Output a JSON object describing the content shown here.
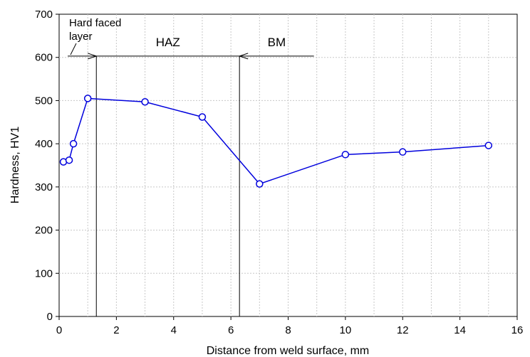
{
  "chart_data": {
    "type": "line",
    "title": "",
    "xlabel": "Distance from weld surface, mm",
    "ylabel": "Hardness, HV1",
    "xlim": [
      0,
      16
    ],
    "ylim": [
      0,
      700
    ],
    "xticks": [
      0,
      2,
      4,
      6,
      8,
      10,
      12,
      14,
      16
    ],
    "yticks": [
      0,
      100,
      200,
      300,
      400,
      500,
      600,
      700
    ],
    "grid": true,
    "legend": "none",
    "series": [
      {
        "color": "#0000dd",
        "x": [
          0.15,
          0.35,
          0.5,
          1.0,
          3.0,
          5.0,
          7.0,
          10.0,
          12.0,
          15.0
        ],
        "y": [
          358,
          362,
          400,
          505,
          497,
          462,
          307,
          375,
          381,
          396
        ]
      }
    ],
    "zones": {
      "boundaries": [
        1.3,
        6.3
      ],
      "arrow_y": 603,
      "hard_faced": {
        "label_line1": "Hard faced",
        "label_line2": "layer",
        "x_start": 0.3,
        "x_end": 1.3
      },
      "haz": {
        "label": "HAZ",
        "x_start": 1.3,
        "x_end": 6.3
      },
      "bm": {
        "label": "BM",
        "x_start": 6.3,
        "x_end": 8.9
      }
    }
  }
}
